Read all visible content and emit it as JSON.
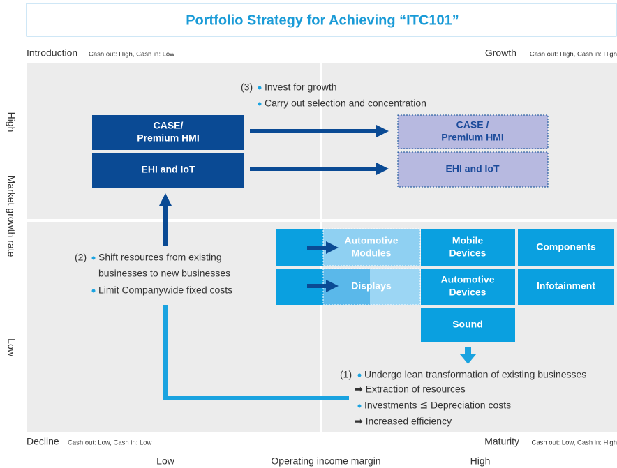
{
  "title": "Portfolio Strategy for Achieving “ITC101”",
  "quadrants": {
    "introduction": {
      "name": "Introduction",
      "note": "Cash out: High, Cash in: Low"
    },
    "growth": {
      "name": "Growth",
      "note": "Cash out: High, Cash in: High"
    },
    "decline": {
      "name": "Decline",
      "note": "Cash out: Low, Cash in: Low"
    },
    "maturity": {
      "name": "Maturity",
      "note": "Cash out: Low, Cash in: High"
    }
  },
  "y_axis": {
    "high": "High",
    "label": "Market growth rate",
    "low": "Low"
  },
  "x_axis": {
    "low": "Low",
    "label": "Operating income margin",
    "high": "High"
  },
  "strategies": [
    {
      "number": "(1)",
      "lines": [
        "Undergo lean transformation of existing businesses",
        "➡ Extraction of resources",
        "Investments ≦ Depreciation costs",
        "➡ Increased efficiency"
      ]
    },
    {
      "number": "(2)",
      "lines": [
        "Shift resources from existing",
        "businesses to new businesses",
        "Limit Companywide fixed costs"
      ]
    },
    {
      "number": "(3)",
      "lines": [
        "Invest for growth",
        "Carry out selection and concentration"
      ]
    }
  ],
  "new_businesses": [
    [
      "CASE/",
      "Premium HMI"
    ],
    [
      "EHI and IoT"
    ]
  ],
  "growth_targets": [
    [
      "CASE  /",
      "Premium HMI"
    ],
    [
      "EHI and IoT"
    ]
  ],
  "existing_businesses": [
    [
      "Automotive",
      "Modules"
    ],
    [
      "Displays"
    ],
    [
      "Mobile",
      "Devices"
    ],
    [
      "Components"
    ],
    [
      "Automotive",
      "Devices"
    ],
    [
      "Infotainment"
    ],
    [
      "Sound"
    ]
  ]
}
